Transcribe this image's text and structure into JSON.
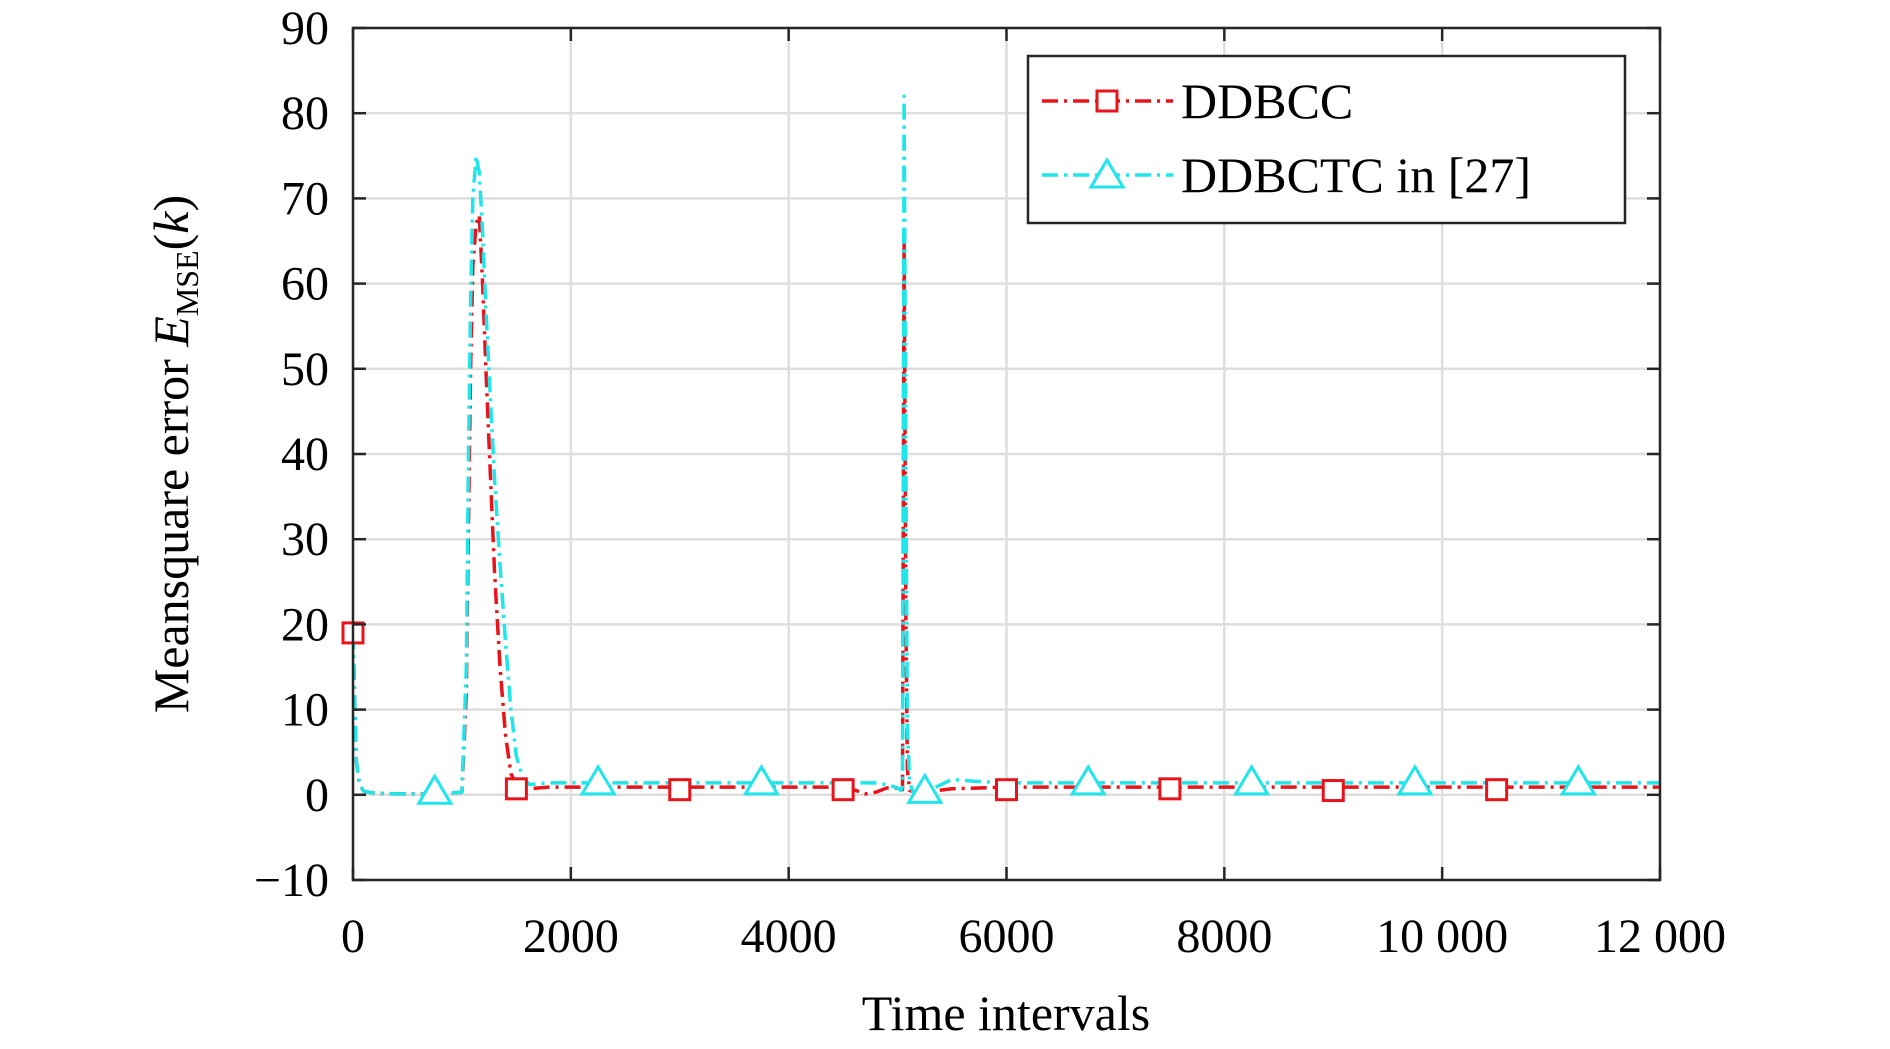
{
  "chart_data": {
    "type": "line",
    "title": "",
    "xlabel": "Time intervals",
    "ylabel": {
      "main": "Meansquare error",
      "symbol": "E",
      "subscript": "MSE",
      "paren_open": "(",
      "argument": "k",
      "paren_close": ")"
    },
    "xlim": [
      0,
      12000
    ],
    "ylim": [
      -10,
      90
    ],
    "x_ticks": [
      0,
      2000,
      4000,
      6000,
      8000,
      10000,
      12000
    ],
    "x_tick_labels": [
      "0",
      "2000",
      "4000",
      "6000",
      "8000",
      "10 000",
      "12 000"
    ],
    "y_ticks": [
      -10,
      0,
      10,
      20,
      30,
      40,
      50,
      60,
      70,
      80,
      90
    ],
    "y_tick_labels": [
      "−10",
      "0",
      "10",
      "20",
      "30",
      "40",
      "50",
      "60",
      "70",
      "80",
      "90"
    ],
    "grid": true,
    "legend_position": "top-right",
    "series": [
      {
        "name": "DDBCC",
        "color": "#e8141b",
        "marker": "square",
        "line_style": "dash-dot",
        "x": [
          0,
          10,
          30,
          60,
          100,
          200,
          400,
          600,
          800,
          1000,
          1040,
          1060,
          1080,
          1100,
          1130,
          1160,
          1190,
          1220,
          1260,
          1300,
          1350,
          1400,
          1450,
          1500,
          1560,
          1620,
          1700,
          1800,
          2000,
          2500,
          3000,
          3500,
          4000,
          4400,
          4600,
          4700,
          4800,
          4900,
          5000,
          5030,
          5045,
          5060,
          5075,
          5090,
          5110,
          5140,
          5200,
          5300,
          5500,
          6000,
          7000,
          8000,
          9000,
          10000,
          11000,
          12000
        ],
        "y": [
          19,
          14,
          4,
          1.2,
          0.4,
          0.2,
          0.1,
          0.1,
          0.1,
          0.3,
          12,
          32,
          50,
          62,
          67,
          68,
          60,
          50,
          38,
          26,
          15,
          7,
          2.5,
          1.1,
          0.8,
          0.7,
          0.8,
          0.9,
          0.9,
          0.9,
          0.9,
          0.9,
          0.9,
          0.9,
          0.6,
          0.1,
          0.3,
          0.8,
          0.8,
          0.4,
          0.6,
          66,
          22,
          3,
          0.5,
          0.4,
          0.2,
          0.4,
          0.7,
          0.9,
          0.9,
          0.9,
          0.9,
          0.9,
          0.9,
          0.9
        ],
        "marker_x": [
          0,
          1500,
          3000,
          4500,
          6000,
          7500,
          9000,
          10500
        ],
        "marker_y": [
          19,
          0.7,
          0.6,
          0.6,
          0.6,
          0.7,
          0.5,
          0.6
        ]
      },
      {
        "name": "DDBCTC in [27]",
        "color": "#1ee6ea",
        "marker": "triangle",
        "line_style": "dash-dot",
        "x": [
          0,
          10,
          30,
          60,
          100,
          200,
          400,
          600,
          800,
          1000,
          1040,
          1060,
          1080,
          1100,
          1130,
          1160,
          1190,
          1220,
          1260,
          1300,
          1350,
          1400,
          1450,
          1500,
          1560,
          1620,
          1700,
          1800,
          2000,
          2500,
          3000,
          3500,
          4000,
          4500,
          4800,
          4900,
          5000,
          5030,
          5045,
          5060,
          5075,
          5090,
          5110,
          5140,
          5200,
          5300,
          5500,
          5700,
          6000,
          7000,
          8000,
          9000,
          10000,
          11000,
          12000
        ],
        "y": [
          19,
          14,
          4,
          1.2,
          0.4,
          0.2,
          0.1,
          0.1,
          0.1,
          0.3,
          15,
          40,
          58,
          70,
          75,
          73,
          66,
          57,
          47,
          37,
          27,
          18,
          10,
          4.5,
          2,
          1.2,
          1.3,
          1.4,
          1.4,
          1.4,
          1.4,
          1.4,
          1.4,
          1.4,
          1.4,
          1.2,
          0.8,
          0.5,
          1,
          82,
          40,
          8,
          1.5,
          0.4,
          0.1,
          0.6,
          1.8,
          1.6,
          1.4,
          1.4,
          1.4,
          1.4,
          1.4,
          1.4,
          1.4
        ],
        "marker_x": [
          750,
          2250,
          3750,
          5250,
          6750,
          8250,
          9750,
          11250
        ],
        "marker_y": [
          0.3,
          1.4,
          1.4,
          0.4,
          1.4,
          1.4,
          1.4,
          1.4
        ]
      }
    ]
  }
}
